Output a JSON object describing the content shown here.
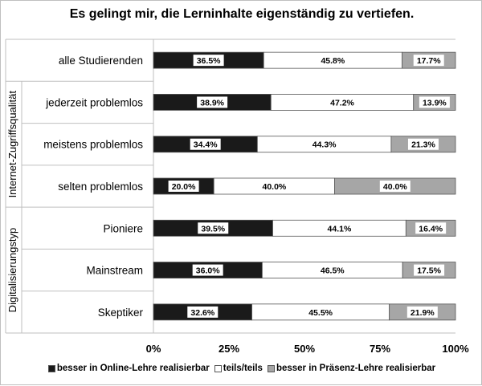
{
  "chart_data": {
    "type": "bar",
    "stacked": true,
    "orientation": "horizontal",
    "title": "Es gelingt mir, die Lerninhalte eigenständig zu vertiefen.",
    "categories": [
      "alle Studierenden",
      "jederzeit problemlos",
      "meistens problemlos",
      "selten problemlos",
      "Pioniere",
      "Mainstream",
      "Skeptiker"
    ],
    "groups": [
      {
        "label": "Internet-Zugriffsqualität",
        "categories": [
          "jederzeit problemlos",
          "meistens problemlos",
          "selten problemlos"
        ]
      },
      {
        "label": "Digitalisierungstyp",
        "categories": [
          "Pioniere",
          "Mainstream",
          "Skeptiker"
        ]
      }
    ],
    "series": [
      {
        "name": "besser in Online-Lehre realisierbar",
        "color": "#1a1a1a",
        "values": [
          36.5,
          38.9,
          34.4,
          20.0,
          39.5,
          36.0,
          32.6
        ],
        "labels": [
          "36.5%",
          "38.9%",
          "34.4%",
          "20.0%",
          "39.5%",
          "36.0%",
          "32.6%"
        ]
      },
      {
        "name": "teils/teils",
        "color": "#ffffff",
        "values": [
          45.8,
          47.2,
          44.3,
          40.0,
          44.1,
          46.5,
          45.5
        ],
        "labels": [
          "45.8%",
          "47.2%",
          "44.3%",
          "40.0%",
          "44.1%",
          "46.5%",
          "45.5%"
        ]
      },
      {
        "name": "besser in Präsenz-Lehre realisierbar",
        "color": "#a6a6a6",
        "values": [
          17.7,
          13.9,
          21.3,
          40.0,
          16.4,
          17.5,
          21.9
        ],
        "labels": [
          "17.7%",
          "13.9%",
          "21.3%",
          "40.0%",
          "16.4%",
          "17.5%",
          "21.9%"
        ]
      }
    ],
    "xlim": [
      0,
      100
    ],
    "xticks": [
      "0%",
      "25%",
      "50%",
      "75%",
      "100%"
    ],
    "grid": false,
    "legend_position": "bottom"
  }
}
